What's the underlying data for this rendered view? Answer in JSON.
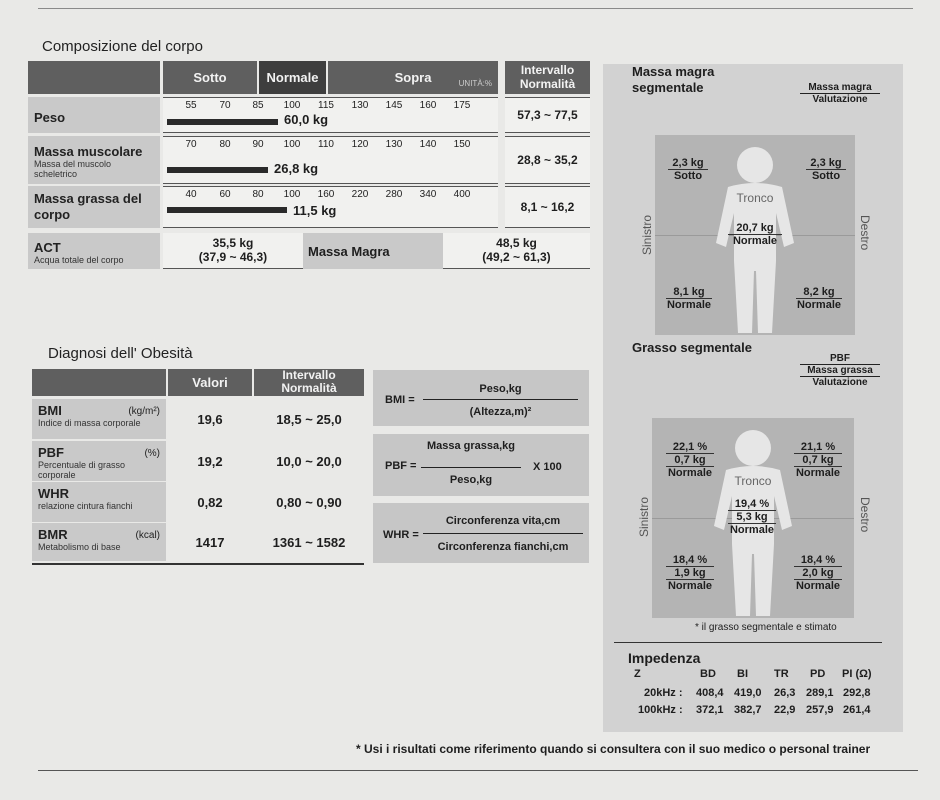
{
  "composition": {
    "title": "Composizione del corpo",
    "headers": {
      "sotto": "Sotto",
      "normale": "Normale",
      "sopra": "Sopra",
      "unit": "UNITÀ:%",
      "range": "Intervallo Normalità"
    },
    "rows": [
      {
        "label": "Peso",
        "sub": "",
        "ticks": [
          "55",
          "70",
          "85",
          "100",
          "115",
          "130",
          "145",
          "160",
          "175"
        ],
        "value": "60,0 kg",
        "percent": 89,
        "range": "57,3 ~ 77,5"
      },
      {
        "label": "Massa muscolare",
        "sub": "Massa del muscolo scheletrico",
        "ticks": [
          "70",
          "80",
          "90",
          "100",
          "110",
          "120",
          "130",
          "140",
          "150"
        ],
        "value": "26,8 kg",
        "percent": 81,
        "range": "28,8 ~ 35,2"
      },
      {
        "label": "Massa grassa del corpo",
        "sub": "",
        "ticks": [
          "40",
          "60",
          "80",
          "100",
          "160",
          "220",
          "280",
          "340",
          "400"
        ],
        "value": "11,5 kg",
        "percent": 96,
        "range": "8,1 ~ 16,2"
      }
    ],
    "act": {
      "label": "ACT",
      "sub": "Acqua totale del corpo",
      "value": "35,5 kg",
      "range": "(37,9 ~ 46,3)"
    },
    "lean": {
      "label": "Massa Magra",
      "value": "48,5 kg",
      "range": "(49,2 ~ 61,3)"
    }
  },
  "obesity": {
    "title": "Diagnosi dell' Obesità",
    "headers": {
      "valori": "Valori",
      "range": "Intervallo Normalità"
    },
    "rows": [
      {
        "label": "BMI",
        "unit": "(kg/m²)",
        "sub": "Indice di massa corporale",
        "value": "19,6",
        "range": "18,5 ~ 25,0"
      },
      {
        "label": "PBF",
        "unit": "(%)",
        "sub": "Percentuale di grasso corporale",
        "value": "19,2",
        "range": "10,0 ~ 20,0"
      },
      {
        "label": "WHR",
        "unit": "",
        "sub": "relazione cintura fianchi",
        "value": "0,82",
        "range": "0,80 ~ 0,90"
      },
      {
        "label": "BMR",
        "unit": "(kcal)",
        "sub": "Metabolismo di base",
        "value": "1417",
        "range": "1361 ~ 1582"
      }
    ]
  },
  "formulas": {
    "bmi": {
      "lhs": "BMI =",
      "num": "Peso,kg",
      "den": "(Altezza,m)²"
    },
    "pbf": {
      "lhs": "PBF =",
      "num": "Massa grassa,kg",
      "den": "Peso,kg",
      "mult": "X 100"
    },
    "whr": {
      "lhs": "WHR =",
      "num": "Circonferenza vita,cm",
      "den": "Circonferenza fianchi,cm"
    }
  },
  "lean_segmental": {
    "title": "Massa magra segmentale",
    "legend_top": "Massa magra",
    "legend_bottom": "Valutazione",
    "trunk_label": "Tronco",
    "left": "Sinistro",
    "right": "Destro",
    "segments": {
      "left_arm": {
        "v": "2,3 kg",
        "e": "Sotto"
      },
      "right_arm": {
        "v": "2,3 kg",
        "e": "Sotto"
      },
      "trunk": {
        "v": "20,7 kg",
        "e": "Normale"
      },
      "left_leg": {
        "v": "8,1 kg",
        "e": "Normale"
      },
      "right_leg": {
        "v": "8,2 kg",
        "e": "Normale"
      }
    }
  },
  "fat_segmental": {
    "title": "Grasso segmentale",
    "legend_1": "PBF",
    "legend_2": "Massa grassa",
    "legend_3": "Valutazione",
    "trunk_label": "Tronco",
    "left": "Sinistro",
    "right": "Destro",
    "segments": {
      "left_arm": {
        "p": "22,1 %",
        "v": "0,7 kg",
        "e": "Normale"
      },
      "right_arm": {
        "p": "21,1 %",
        "v": "0,7 kg",
        "e": "Normale"
      },
      "trunk": {
        "p": "19,4 %",
        "v": "5,3 kg",
        "e": "Normale"
      },
      "left_leg": {
        "p": "18,4 %",
        "v": "1,9 kg",
        "e": "Normale"
      },
      "right_leg": {
        "p": "18,4 %",
        "v": "2,0 kg",
        "e": "Normale"
      }
    },
    "note": "* il grasso segmentale e stimato"
  },
  "impedance": {
    "title": "Impedenza",
    "columns": [
      "Z",
      "BD",
      "BI",
      "TR",
      "PD",
      "PI (Ω)"
    ],
    "rows": [
      {
        "label": "20kHz :",
        "values": [
          "408,4",
          "419,0",
          "26,3",
          "289,1",
          "292,8"
        ]
      },
      {
        "label": "100kHz :",
        "values": [
          "372,1",
          "382,7",
          "22,9",
          "257,9",
          "261,4"
        ]
      }
    ]
  },
  "footer": "* Usi i risultati come riferimento quando si consultera con il suo medico o personal trainer"
}
